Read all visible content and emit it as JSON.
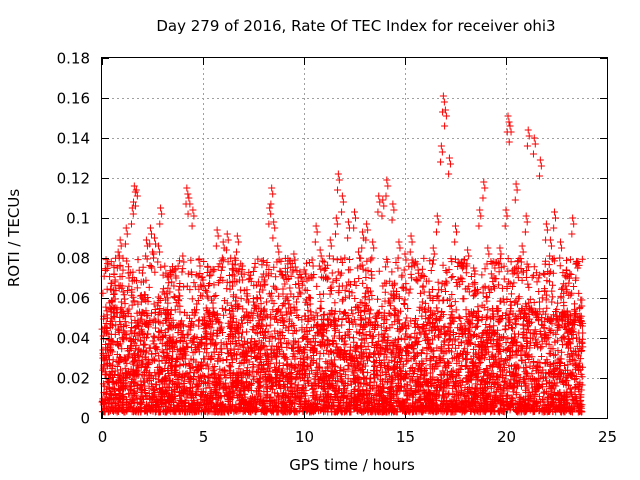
{
  "chart_data": {
    "type": "scatter",
    "title": "Day 279 of 2016, Rate Of TEC Index for receiver ohi3",
    "xlabel": "GPS time / hours",
    "ylabel": "ROTI / TECUs",
    "xlim": [
      0,
      25
    ],
    "ylim": [
      0,
      0.18
    ],
    "xticks": [
      0,
      5,
      10,
      15,
      20,
      25
    ],
    "xtick_labels": [
      "0",
      "5",
      "10",
      "15",
      "20",
      "25"
    ],
    "yticks": [
      0,
      0.02,
      0.04,
      0.06,
      0.08,
      0.1,
      0.12,
      0.14,
      0.16,
      0.18
    ],
    "ytick_labels": [
      "0",
      "0.02",
      "0.04",
      "0.06",
      "0.08",
      "0.1",
      "0.12",
      "0.14",
      "0.16",
      "0.18"
    ],
    "grid": true,
    "marker": "+",
    "color": "#ff0000",
    "series": [
      {
        "name": "ROTI",
        "x": [
          0.3,
          0.5,
          0.6,
          0.8,
          0.9,
          1.0,
          1.2,
          1.5,
          1.6,
          1.7,
          1.9,
          2.2,
          2.4,
          2.5,
          2.6,
          2.8,
          2.9,
          3.1,
          3.4,
          3.6,
          3.8,
          4.0,
          4.2,
          4.3,
          4.5,
          4.8,
          5.0,
          5.2,
          5.5,
          5.7,
          6.0,
          6.2,
          6.5,
          6.7,
          6.9,
          7.2,
          7.5,
          7.8,
          8.0,
          8.3,
          8.4,
          8.5,
          8.7,
          9.0,
          9.3,
          9.5,
          9.8,
          10.1,
          10.4,
          10.6,
          10.8,
          11.0,
          11.3,
          11.6,
          11.7,
          11.9,
          12.2,
          12.5,
          12.7,
          12.9,
          13.1,
          13.4,
          13.7,
          13.9,
          14.1,
          14.4,
          14.7,
          15.0,
          15.3,
          15.6,
          15.9,
          16.2,
          16.4,
          16.6,
          16.8,
          16.9,
          17.0,
          17.2,
          17.5,
          17.8,
          18.1,
          18.4,
          18.7,
          18.9,
          19.1,
          19.4,
          19.7,
          20.0,
          20.1,
          20.2,
          20.5,
          20.8,
          21.0,
          21.1,
          21.4,
          21.7,
          22.0,
          22.2,
          22.4,
          22.7,
          23.0,
          23.3,
          23.5,
          23.7
        ],
        "y": [
          0.042,
          0.058,
          0.072,
          0.083,
          0.089,
          0.066,
          0.095,
          0.105,
          0.116,
          0.114,
          0.061,
          0.089,
          0.095,
          0.083,
          0.09,
          0.086,
          0.105,
          0.062,
          0.071,
          0.074,
          0.064,
          0.081,
          0.115,
          0.11,
          0.104,
          0.079,
          0.069,
          0.063,
          0.055,
          0.094,
          0.088,
          0.092,
          0.074,
          0.091,
          0.072,
          0.061,
          0.058,
          0.063,
          0.072,
          0.105,
          0.115,
          0.098,
          0.086,
          0.07,
          0.065,
          0.082,
          0.073,
          0.072,
          0.079,
          0.096,
          0.084,
          0.078,
          0.089,
          0.1,
          0.122,
          0.111,
          0.098,
          0.103,
          0.083,
          0.093,
          0.097,
          0.088,
          0.111,
          0.109,
          0.119,
          0.107,
          0.088,
          0.082,
          0.091,
          0.077,
          0.066,
          0.063,
          0.085,
          0.101,
          0.136,
          0.161,
          0.154,
          0.13,
          0.096,
          0.078,
          0.084,
          0.075,
          0.104,
          0.118,
          0.085,
          0.078,
          0.085,
          0.104,
          0.151,
          0.146,
          0.117,
          0.086,
          0.101,
          0.144,
          0.14,
          0.129,
          0.097,
          0.089,
          0.103,
          0.088,
          0.074,
          0.1,
          0.078,
          0.059
        ],
        "bulk_range": [
          0.003,
          0.055
        ]
      }
    ]
  }
}
